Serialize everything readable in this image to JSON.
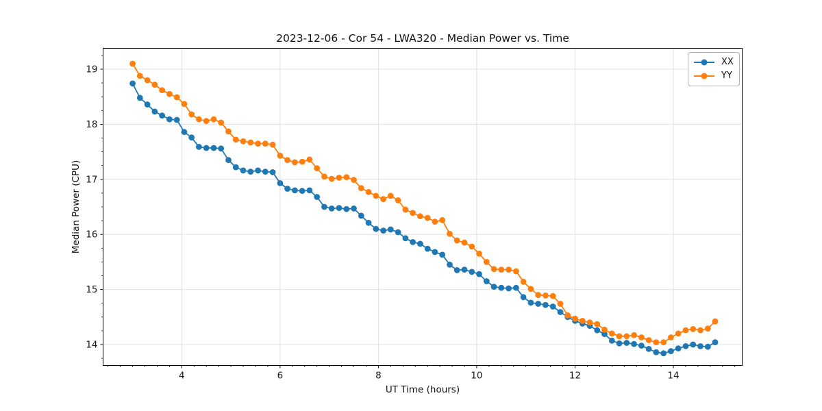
{
  "chart_data": {
    "type": "line",
    "title": "2023-12-06 - Cor 54 - LWA320 - Median Power vs. Time",
    "xlabel": "UT Time (hours)",
    "ylabel": "Median Power (CPU)",
    "xlim": [
      2.4,
      15.4
    ],
    "ylim": [
      13.62,
      19.38
    ],
    "xticks": [
      4,
      6,
      8,
      10,
      12,
      14
    ],
    "yticks": [
      14,
      15,
      16,
      17,
      18,
      19
    ],
    "minor_tick_step": 0.25,
    "grid": true,
    "legend_position": "upper right",
    "marker": "o",
    "x": [
      3.0,
      3.15,
      3.3,
      3.45,
      3.6,
      3.75,
      3.9,
      4.05,
      4.2,
      4.35,
      4.5,
      4.65,
      4.8,
      4.95,
      5.1,
      5.25,
      5.4,
      5.55,
      5.7,
      5.85,
      6.0,
      6.15,
      6.3,
      6.45,
      6.6,
      6.75,
      6.9,
      7.05,
      7.2,
      7.35,
      7.5,
      7.65,
      7.8,
      7.95,
      8.1,
      8.25,
      8.4,
      8.55,
      8.7,
      8.85,
      9.0,
      9.15,
      9.3,
      9.45,
      9.6,
      9.75,
      9.9,
      10.05,
      10.2,
      10.35,
      10.5,
      10.65,
      10.8,
      10.95,
      11.1,
      11.25,
      11.4,
      11.55,
      11.7,
      11.85,
      12.0,
      12.15,
      12.3,
      12.45,
      12.6,
      12.75,
      12.9,
      13.05,
      13.2,
      13.35,
      13.5,
      13.65,
      13.8,
      13.95,
      14.1,
      14.25,
      14.4,
      14.55,
      14.7,
      14.85
    ],
    "series": [
      {
        "name": "XX",
        "color": "#1f77b4",
        "values": [
          18.74,
          18.48,
          18.36,
          18.23,
          18.16,
          18.09,
          18.08,
          17.86,
          17.76,
          17.59,
          17.57,
          17.57,
          17.56,
          17.35,
          17.22,
          17.16,
          17.14,
          17.16,
          17.14,
          17.13,
          16.93,
          16.83,
          16.8,
          16.79,
          16.8,
          16.68,
          16.5,
          16.47,
          16.48,
          16.46,
          16.47,
          16.34,
          16.21,
          16.1,
          16.07,
          16.09,
          16.04,
          15.93,
          15.86,
          15.83,
          15.74,
          15.68,
          15.63,
          15.45,
          15.35,
          15.36,
          15.32,
          15.28,
          15.15,
          15.05,
          15.03,
          15.02,
          15.03,
          14.86,
          14.76,
          14.74,
          14.72,
          14.69,
          14.59,
          14.5,
          14.43,
          14.38,
          14.34,
          14.26,
          14.19,
          14.07,
          14.02,
          14.03,
          14.01,
          13.98,
          13.92,
          13.86,
          13.84,
          13.88,
          13.93,
          13.97,
          14.0,
          13.97,
          13.96,
          14.04
        ]
      },
      {
        "name": "YY",
        "color": "#ff7f0e",
        "values": [
          19.1,
          18.88,
          18.8,
          18.72,
          18.62,
          18.55,
          18.49,
          18.37,
          18.18,
          18.09,
          18.06,
          18.09,
          18.03,
          17.87,
          17.72,
          17.69,
          17.67,
          17.65,
          17.65,
          17.63,
          17.43,
          17.35,
          17.31,
          17.32,
          17.36,
          17.2,
          17.05,
          17.01,
          17.03,
          17.04,
          16.99,
          16.84,
          16.77,
          16.7,
          16.64,
          16.7,
          16.62,
          16.45,
          16.39,
          16.33,
          16.3,
          16.23,
          16.26,
          16.01,
          15.89,
          15.85,
          15.78,
          15.65,
          15.5,
          15.37,
          15.36,
          15.36,
          15.33,
          15.14,
          15.01,
          14.9,
          14.89,
          14.88,
          14.74,
          14.53,
          14.47,
          14.43,
          14.4,
          14.37,
          14.27,
          14.2,
          14.15,
          14.15,
          14.17,
          14.13,
          14.08,
          14.04,
          14.04,
          14.13,
          14.2,
          14.26,
          14.28,
          14.26,
          14.29,
          14.42
        ]
      }
    ]
  },
  "colors": {
    "grid": "#e0e0e0",
    "spine": "#000000",
    "tick_text": "#1a1a1a",
    "legend_border": "#b3b3b3"
  }
}
